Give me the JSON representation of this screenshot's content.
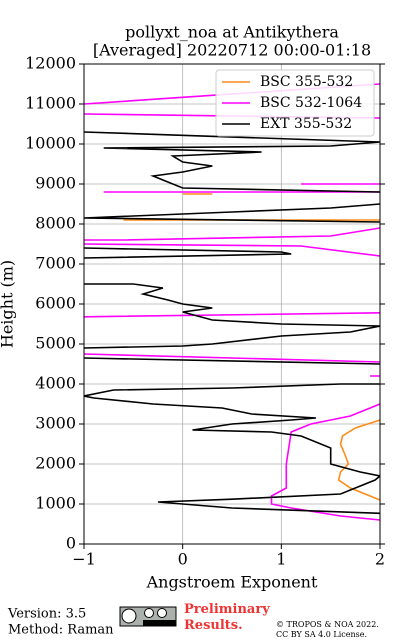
{
  "chart_data": {
    "type": "line",
    "title": "pollyxt_noa at Antikythera",
    "subtitle": "[Averaged] 20220712 00:00-01:18",
    "x_label": "Angstroem Exponent",
    "y_label": "Height (m)",
    "xlim": [
      -1,
      2
    ],
    "xticks": [
      {
        "value": -1,
        "label": "−1"
      },
      0,
      1,
      2
    ],
    "ylim": [
      0,
      12000
    ],
    "yticks": [
      0,
      1000,
      2000,
      3000,
      4000,
      5000,
      6000,
      7000,
      8000,
      9000,
      10000,
      11000,
      12000
    ],
    "grid": true,
    "legend": "upper right",
    "series": [
      {
        "name": "BSC 355-532",
        "color": "#ff8c1a",
        "values": [
          2.0,
          1.75,
          1.62,
          1.6,
          1.65,
          1.68,
          1.6,
          1.58,
          1.7,
          1.9,
          2.0,
          null,
          -0.6,
          2.0,
          null,
          0.0,
          0.3
        ],
        "heights": [
          3100,
          2900,
          2700,
          2500,
          2200,
          2000,
          1800,
          1600,
          1400,
          1200,
          1100,
          null,
          8100,
          8100,
          null,
          8750,
          8750
        ]
      },
      {
        "name": "BSC 532-1064",
        "color": "#ff00ff",
        "values": [
          2.0,
          1.6,
          1.1,
          0.9,
          0.9,
          1.05,
          1.05,
          1.1,
          1.3,
          1.7,
          2.0,
          2.1,
          null,
          1.9,
          2.0,
          null,
          -1.0,
          2.0,
          null,
          -1.0,
          2.0,
          null,
          2.0,
          1.2,
          -1.0,
          null,
          -1.0,
          -0.6,
          1.5,
          2.0,
          null,
          -0.8,
          2.0,
          null,
          1.2,
          2.0,
          null,
          -1.0,
          2.0,
          null,
          -1.0,
          2.0
        ],
        "heights": [
          600,
          700,
          900,
          1000,
          1200,
          1400,
          2000,
          2800,
          3000,
          3200,
          3500,
          3700,
          null,
          4200,
          4200,
          null,
          4750,
          4550,
          null,
          5680,
          5780,
          null,
          7200,
          7450,
          7500,
          null,
          7600,
          7600,
          7700,
          7900,
          null,
          8800,
          8800,
          null,
          9000,
          9000,
          null,
          10750,
          10650,
          null,
          11000,
          11500
        ]
      },
      {
        "name": "EXT 355-532",
        "color": "#000000",
        "values": [
          2.2,
          0.5,
          -0.25,
          0.5,
          1.6,
          1.95,
          2.0,
          1.8,
          1.5,
          1.5,
          1.2,
          0.9,
          0.1,
          0.5,
          1.1,
          1.35,
          0.7,
          0.4,
          -0.3,
          -0.9,
          -1.0,
          -0.7,
          0.5,
          1.6,
          2.0,
          null,
          2.0,
          -1.0,
          null,
          -1.0,
          0.0,
          0.3,
          1.0,
          1.7,
          2.0,
          1.0,
          0.3,
          0.0,
          0.3,
          0.0,
          -0.15,
          -0.4,
          -0.2,
          -0.5,
          -1.0,
          null,
          -1.0,
          1.1,
          1.0,
          -1.0,
          null,
          2.0,
          -1.0,
          0.5,
          1.5,
          2.0,
          null,
          2.0,
          0.0,
          -0.2,
          -0.3,
          0.0,
          0.3,
          0.0,
          -0.1,
          0.8,
          -0.8,
          1.5,
          2.0,
          -1.0
        ],
        "heights": [
          750,
          900,
          1050,
          1120,
          1250,
          1600,
          1700,
          1800,
          2000,
          2400,
          2700,
          2800,
          2850,
          3000,
          3100,
          3150,
          3250,
          3400,
          3500,
          3650,
          3700,
          3850,
          3900,
          4000,
          4000,
          null,
          4500,
          4650,
          null,
          4900,
          4950,
          5000,
          5200,
          5300,
          5450,
          5500,
          5600,
          5800,
          5900,
          6000,
          6100,
          6250,
          6400,
          6500,
          6500,
          null,
          7150,
          7250,
          7300,
          7400,
          null,
          8050,
          8150,
          8300,
          8400,
          8500,
          null,
          8800,
          8900,
          9100,
          9200,
          9300,
          9450,
          9550,
          9700,
          9800,
          9900,
          9950,
          10050,
          10300
        ]
      }
    ]
  },
  "footer": {
    "version": "Version: 3.5",
    "method": "Method: Raman",
    "preliminary": "Preliminary Results.",
    "license": "© TROPOS & NOA 2022. CC BY SA 4.0 License."
  }
}
